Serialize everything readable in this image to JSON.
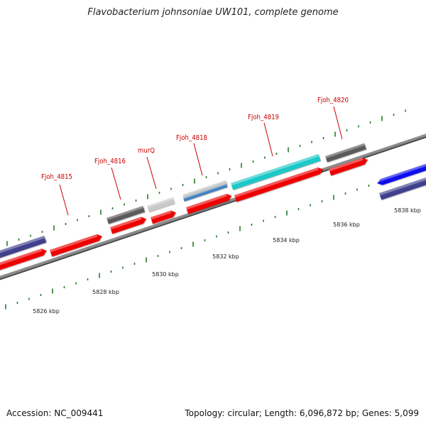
{
  "title": "Flavobacterium johnsoniae UW101, complete genome",
  "footer": {
    "accession": "Accession: NC_009441",
    "summary": "Topology: circular; Length: 6,096,872 bp; Genes: 5,099"
  },
  "colors": {
    "label_color": "#cc0000",
    "tick_color": "#2a7a2a",
    "backbone": "#8c8c8c",
    "feature_red": "#ee0000",
    "feature_dark_gray": "#5a5a5a",
    "feature_light_gray": "#c8c8c8",
    "feature_cyan": "#1ec8c8",
    "feature_steel_blue": "#3f7fbf",
    "feature_navy": "#3f3f8f",
    "feature_blue": "#1010ee"
  },
  "scale_labels": [
    "5826 kbp",
    "5828 kbp",
    "5830 kbp",
    "5832 kbp",
    "5834 kbp",
    "5836 kbp",
    "5838 kbp"
  ],
  "gene_labels": [
    "Fjoh_4815",
    "Fjoh_4816",
    "murQ",
    "Fjoh_4818",
    "Fjoh_4819",
    "Fjoh_4820"
  ]
}
